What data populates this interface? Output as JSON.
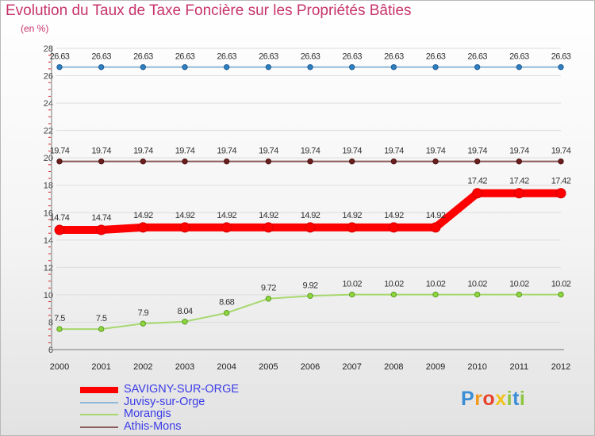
{
  "header": {
    "title": "Evolution du Taux de Taxe Foncière sur les Propriétés Bâties",
    "unit": "(en %)"
  },
  "logo": {
    "text": "Proxiti",
    "letters": [
      {
        "char": "P",
        "color": "#3b8dd6"
      },
      {
        "char": "r",
        "color": "#f29a1f"
      },
      {
        "char": "o",
        "color": "#e8432a"
      },
      {
        "char": "x",
        "color": "#f2c21f"
      },
      {
        "char": "i",
        "color": "#8cc63f"
      },
      {
        "char": "t",
        "color": "#3b8dd6"
      },
      {
        "char": "i",
        "color": "#8cc63f"
      }
    ]
  },
  "chart_data": {
    "type": "line",
    "title": "Evolution du Taux de Taxe Foncière sur les Propriétés Bâties",
    "ylabel": "(en %)",
    "xlabel": "",
    "x": [
      "2000",
      "2001",
      "2002",
      "2003",
      "2004",
      "2005",
      "2006",
      "2007",
      "2008",
      "2009",
      "2010",
      "2011",
      "2012"
    ],
    "ylim": [
      6,
      28
    ],
    "yticks": [
      "6",
      "8",
      "10",
      "12",
      "14",
      "16",
      "18",
      "20",
      "22",
      "24",
      "26",
      "28"
    ],
    "grid": "horizontal",
    "legend_position": "bottom-left",
    "series": [
      {
        "name": "SAVIGNY-SUR-ORGE",
        "color": "#ff0000",
        "marker_color": "#ff0000",
        "marker_stroke": "#d40000",
        "weight": "thick",
        "values": [
          14.74,
          14.74,
          14.92,
          14.92,
          14.92,
          14.92,
          14.92,
          14.92,
          14.92,
          14.92,
          17.42,
          17.42,
          17.42
        ],
        "labels": [
          "14.74",
          "14.74",
          "14.92",
          "14.92",
          "14.92",
          "14.92",
          "14.92",
          "14.92",
          "14.92",
          "14.92",
          "17.42",
          "17.42",
          "17.42"
        ]
      },
      {
        "name": "Juvisy-sur-Orge",
        "color": "#8fb8d8",
        "marker_color": "#2f7fc0",
        "marker_stroke": "#1f5f96",
        "weight": "thin",
        "values": [
          26.63,
          26.63,
          26.63,
          26.63,
          26.63,
          26.63,
          26.63,
          26.63,
          26.63,
          26.63,
          26.63,
          26.63,
          26.63
        ],
        "labels": [
          "26.63",
          "26.63",
          "26.63",
          "26.63",
          "26.63",
          "26.63",
          "26.63",
          "26.63",
          "26.63",
          "26.63",
          "26.63",
          "26.63",
          "26.63"
        ]
      },
      {
        "name": "Morangis",
        "color": "#a6d86e",
        "marker_color": "#8dd63f",
        "marker_stroke": "#5c9a1f",
        "weight": "thin",
        "values": [
          7.5,
          7.5,
          7.9,
          8.04,
          8.68,
          9.72,
          9.92,
          10.02,
          10.02,
          10.02,
          10.02,
          10.02,
          10.02
        ],
        "labels": [
          "7.5",
          "7.5",
          "7.9",
          "8.04",
          "8.68",
          "9.72",
          "9.92",
          "10.02",
          "10.02",
          "10.02",
          "10.02",
          "10.02",
          "10.02"
        ]
      },
      {
        "name": "Athis-Mons",
        "color": "#8b5a5a",
        "marker_color": "#6b1f1f",
        "marker_stroke": "#4a1010",
        "weight": "thin",
        "values": [
          19.74,
          19.74,
          19.74,
          19.74,
          19.74,
          19.74,
          19.74,
          19.74,
          19.74,
          19.74,
          19.74,
          19.74,
          19.74
        ],
        "labels": [
          "19.74",
          "19.74",
          "19.74",
          "19.74",
          "19.74",
          "19.74",
          "19.74",
          "19.74",
          "19.74",
          "19.74",
          "19.74",
          "19.74",
          "19.74"
        ]
      }
    ]
  }
}
